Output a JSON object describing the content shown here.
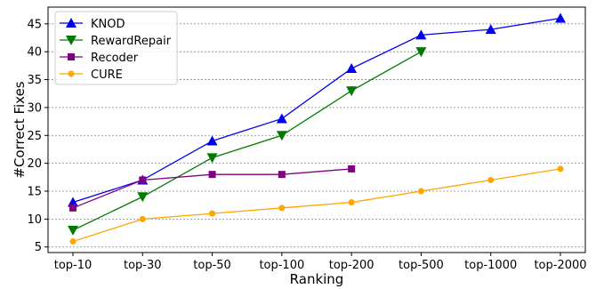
{
  "chart_data": {
    "type": "line",
    "categories": [
      "top-10",
      "top-30",
      "top-50",
      "top-100",
      "top-200",
      "top-500",
      "top-1000",
      "top-2000"
    ],
    "xlabel": "Ranking",
    "ylabel": "#Correct Fixes",
    "ylim": [
      4,
      48
    ],
    "yticks": [
      5,
      10,
      15,
      20,
      25,
      30,
      35,
      40,
      45
    ],
    "grid": "horizontal",
    "legend_position": "top-left",
    "series": [
      {
        "name": "KNOD",
        "color": "#0000ee",
        "marker": "triangle-up",
        "values": [
          13,
          17,
          24,
          28,
          37,
          43,
          44,
          46
        ]
      },
      {
        "name": "RewardRepair",
        "color": "#007a00",
        "marker": "triangle-down",
        "values": [
          8,
          14,
          21,
          25,
          33,
          40,
          null,
          null
        ]
      },
      {
        "name": "Recoder",
        "color": "#800080",
        "marker": "square",
        "values": [
          12,
          17,
          18,
          18,
          19,
          null,
          null,
          null
        ]
      },
      {
        "name": "CURE",
        "color": "#ffa500",
        "marker": "circle",
        "values": [
          6,
          10,
          11,
          12,
          13,
          15,
          17,
          19
        ]
      }
    ]
  }
}
